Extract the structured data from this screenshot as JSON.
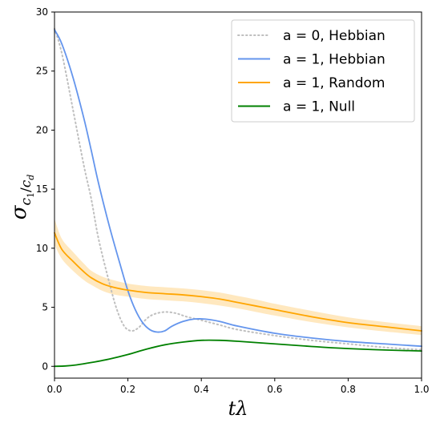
{
  "chart_data": {
    "type": "line",
    "xlabel": "tλ",
    "ylabel": {
      "base": "σ",
      "sub_main": "c",
      "sub_1": "1",
      "slash": "/",
      "sub_main2": "c",
      "sub_d": "d"
    },
    "xlim": [
      0,
      1
    ],
    "ylim": [
      -1,
      30
    ],
    "xticks": [
      "0.0",
      "0.2",
      "0.4",
      "0.6",
      "0.8",
      "1.0"
    ],
    "yticks": [
      "0",
      "5",
      "10",
      "15",
      "20",
      "25",
      "30"
    ],
    "legend_position": "top-right",
    "series": [
      {
        "name": "a = 0, Hebbian",
        "color": "#bfbfbf",
        "style": "dotted",
        "x": [
          0,
          0.02,
          0.05,
          0.08,
          0.1,
          0.12,
          0.15,
          0.17,
          0.19,
          0.21,
          0.23,
          0.25,
          0.27,
          0.3,
          0.33,
          0.36,
          0.4,
          0.45,
          0.5,
          0.6,
          0.7,
          0.8,
          0.9,
          1.0
        ],
        "y": [
          28.6,
          26.5,
          21.8,
          17.0,
          14.2,
          10.8,
          7.0,
          4.8,
          3.4,
          3.0,
          3.3,
          4.0,
          4.4,
          4.6,
          4.5,
          4.2,
          3.9,
          3.5,
          3.1,
          2.6,
          2.2,
          1.9,
          1.6,
          1.4
        ]
      },
      {
        "name": "a = 1, Hebbian",
        "color": "#6495ed",
        "style": "solid",
        "x": [
          0,
          0.02,
          0.05,
          0.08,
          0.1,
          0.12,
          0.15,
          0.18,
          0.2,
          0.22,
          0.24,
          0.26,
          0.28,
          0.3,
          0.32,
          0.35,
          0.38,
          0.41,
          0.45,
          0.5,
          0.6,
          0.7,
          0.8,
          0.9,
          1.0
        ],
        "y": [
          28.5,
          27.3,
          24.5,
          21.0,
          18.3,
          15.5,
          11.8,
          8.5,
          6.4,
          4.8,
          3.7,
          3.1,
          2.9,
          3.0,
          3.4,
          3.8,
          4.0,
          4.0,
          3.8,
          3.4,
          2.8,
          2.4,
          2.1,
          1.9,
          1.7
        ]
      },
      {
        "name": "a = 1, Random",
        "color": "#ffa500",
        "style": "solid",
        "band": true,
        "x": [
          0,
          0.02,
          0.05,
          0.08,
          0.1,
          0.13,
          0.16,
          0.2,
          0.25,
          0.3,
          0.35,
          0.4,
          0.45,
          0.5,
          0.55,
          0.6,
          0.7,
          0.8,
          0.9,
          1.0
        ],
        "y": [
          11.3,
          9.9,
          8.9,
          8.0,
          7.5,
          7.0,
          6.7,
          6.45,
          6.25,
          6.15,
          6.05,
          5.9,
          5.7,
          5.4,
          5.1,
          4.8,
          4.2,
          3.7,
          3.35,
          3.0
        ],
        "band_lower": [
          10.3,
          9.1,
          8.1,
          7.3,
          6.9,
          6.4,
          6.1,
          5.9,
          5.7,
          5.6,
          5.5,
          5.35,
          5.15,
          4.9,
          4.6,
          4.3,
          3.75,
          3.3,
          2.95,
          2.65
        ],
        "band_upper": [
          12.5,
          10.8,
          9.7,
          8.7,
          8.1,
          7.6,
          7.3,
          7.0,
          6.8,
          6.7,
          6.6,
          6.45,
          6.25,
          5.95,
          5.65,
          5.3,
          4.7,
          4.15,
          3.75,
          3.4
        ]
      },
      {
        "name": "a = 1, Null",
        "color": "#008000",
        "style": "solid",
        "x": [
          0,
          0.03,
          0.06,
          0.1,
          0.15,
          0.2,
          0.25,
          0.3,
          0.35,
          0.4,
          0.45,
          0.5,
          0.6,
          0.7,
          0.8,
          0.9,
          1.0
        ],
        "y": [
          0.0,
          0.03,
          0.12,
          0.32,
          0.62,
          1.0,
          1.45,
          1.82,
          2.05,
          2.2,
          2.2,
          2.12,
          1.9,
          1.68,
          1.5,
          1.38,
          1.3
        ]
      }
    ]
  }
}
